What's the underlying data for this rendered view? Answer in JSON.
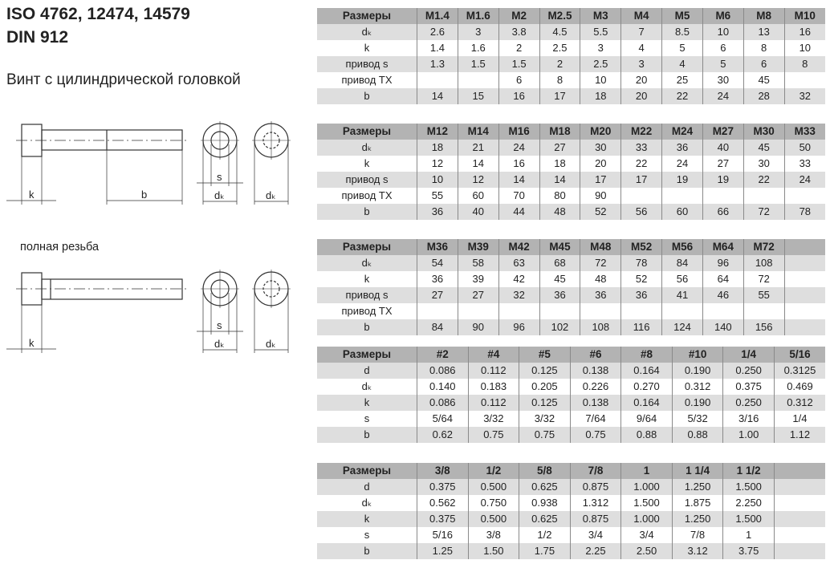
{
  "title_line1": "ISO 4762, 12474, 14579",
  "title_line2": "DIN 912",
  "subtitle": "Винт с цилиндрической головкой",
  "full_thread_label": "полная резьба",
  "diagram_labels": {
    "k": "k",
    "b": "b",
    "s": "s",
    "dk": "dₖ"
  },
  "colors": {
    "header_bg": "#b3b3b3",
    "stripe_bg": "#dedede"
  },
  "tables": [
    {
      "header": [
        "Размеры",
        "M1.4",
        "M1.6",
        "M2",
        "M2.5",
        "M3",
        "M4",
        "M5",
        "M6",
        "M8",
        "M10"
      ],
      "rows": [
        [
          "dₖ",
          "2.6",
          "3",
          "3.8",
          "4.5",
          "5.5",
          "7",
          "8.5",
          "10",
          "13",
          "16"
        ],
        [
          "k",
          "1.4",
          "1.6",
          "2",
          "2.5",
          "3",
          "4",
          "5",
          "6",
          "8",
          "10"
        ],
        [
          "привод s",
          "1.3",
          "1.5",
          "1.5",
          "2",
          "2.5",
          "3",
          "4",
          "5",
          "6",
          "8"
        ],
        [
          "привод TX",
          "",
          "",
          "6",
          "8",
          "10",
          "20",
          "25",
          "30",
          "45",
          ""
        ],
        [
          "b",
          "14",
          "15",
          "16",
          "17",
          "18",
          "20",
          "22",
          "24",
          "28",
          "32"
        ]
      ]
    },
    {
      "header": [
        "Размеры",
        "M12",
        "M14",
        "M16",
        "M18",
        "M20",
        "M22",
        "M24",
        "M27",
        "M30",
        "M33"
      ],
      "rows": [
        [
          "dₖ",
          "18",
          "21",
          "24",
          "27",
          "30",
          "33",
          "36",
          "40",
          "45",
          "50"
        ],
        [
          "k",
          "12",
          "14",
          "16",
          "18",
          "20",
          "22",
          "24",
          "27",
          "30",
          "33"
        ],
        [
          "привод s",
          "10",
          "12",
          "14",
          "14",
          "17",
          "17",
          "19",
          "19",
          "22",
          "24"
        ],
        [
          "привод TX",
          "55",
          "60",
          "70",
          "80",
          "90",
          "",
          "",
          "",
          "",
          ""
        ],
        [
          "b",
          "36",
          "40",
          "44",
          "48",
          "52",
          "56",
          "60",
          "66",
          "72",
          "78"
        ]
      ]
    },
    {
      "header": [
        "Размеры",
        "M36",
        "M39",
        "M42",
        "M45",
        "M48",
        "M52",
        "M56",
        "M64",
        "M72",
        ""
      ],
      "rows": [
        [
          "dₖ",
          "54",
          "58",
          "63",
          "68",
          "72",
          "78",
          "84",
          "96",
          "108",
          ""
        ],
        [
          "k",
          "36",
          "39",
          "42",
          "45",
          "48",
          "52",
          "56",
          "64",
          "72",
          ""
        ],
        [
          "привод s",
          "27",
          "27",
          "32",
          "36",
          "36",
          "36",
          "41",
          "46",
          "55",
          ""
        ],
        [
          "привод TX",
          "",
          "",
          "",
          "",
          "",
          "",
          "",
          "",
          "",
          ""
        ],
        [
          "b",
          "84",
          "90",
          "96",
          "102",
          "108",
          "116",
          "124",
          "140",
          "156",
          ""
        ]
      ]
    },
    {
      "header": [
        "Размеры",
        "#2",
        "#4",
        "#5",
        "#6",
        "#8",
        "#10",
        "1/4",
        "5/16"
      ],
      "rows": [
        [
          "d",
          "0.086",
          "0.112",
          "0.125",
          "0.138",
          "0.164",
          "0.190",
          "0.250",
          "0.3125"
        ],
        [
          "dₖ",
          "0.140",
          "0.183",
          "0.205",
          "0.226",
          "0.270",
          "0.312",
          "0.375",
          "0.469"
        ],
        [
          "k",
          "0.086",
          "0.112",
          "0.125",
          "0.138",
          "0.164",
          "0.190",
          "0.250",
          "0.312"
        ],
        [
          "s",
          "5/64",
          "3/32",
          "3/32",
          "7/64",
          "9/64",
          "5/32",
          "3/16",
          "1/4"
        ],
        [
          "b",
          "0.62",
          "0.75",
          "0.75",
          "0.75",
          "0.88",
          "0.88",
          "1.00",
          "1.12"
        ]
      ]
    },
    {
      "header": [
        "Размеры",
        "3/8",
        "1/2",
        "5/8",
        "7/8",
        "1",
        "1 1/4",
        "1 1/2",
        ""
      ],
      "rows": [
        [
          "d",
          "0.375",
          "0.500",
          "0.625",
          "0.875",
          "1.000",
          "1.250",
          "1.500",
          ""
        ],
        [
          "dₖ",
          "0.562",
          "0.750",
          "0.938",
          "1.312",
          "1.500",
          "1.875",
          "2.250",
          ""
        ],
        [
          "k",
          "0.375",
          "0.500",
          "0.625",
          "0.875",
          "1.000",
          "1.250",
          "1.500",
          ""
        ],
        [
          "s",
          "5/16",
          "3/8",
          "1/2",
          "3/4",
          "3/4",
          "7/8",
          "1",
          ""
        ],
        [
          "b",
          "1.25",
          "1.50",
          "1.75",
          "2.25",
          "2.50",
          "3.12",
          "3.75",
          ""
        ]
      ]
    }
  ]
}
